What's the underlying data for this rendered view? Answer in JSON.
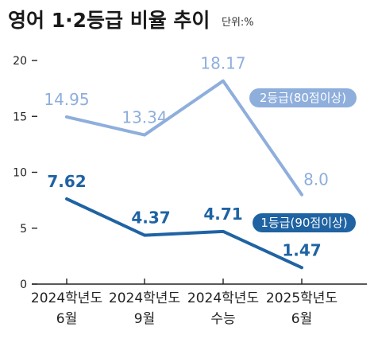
{
  "title": "영어 1·2등급 비율 추이",
  "unit_label": "단위:%",
  "colors": {
    "series_1": "#1f63a3",
    "series_2": "#8eaedc",
    "axis": "#222222",
    "text": "#222222"
  },
  "chart_data": {
    "type": "line",
    "title": "영어 1·2등급 비율 추이",
    "categories": [
      [
        "2024학년도",
        "6월"
      ],
      [
        "2024학년도",
        "9월"
      ],
      [
        "2024학년도",
        "수능"
      ],
      [
        "2025학년도",
        "6월"
      ]
    ],
    "ylim": [
      0,
      20
    ],
    "yticks": [
      0,
      5,
      10,
      15,
      20
    ],
    "grid": false,
    "series": [
      {
        "name": "2등급(80점이상)",
        "values": [
          14.95,
          13.34,
          18.17,
          8.0
        ],
        "labels": [
          "14.95",
          "13.34",
          "18.17",
          "8.0"
        ],
        "color": "#8eaedc"
      },
      {
        "name": "1등급(90점이상)",
        "values": [
          7.62,
          4.37,
          4.71,
          1.47
        ],
        "labels": [
          "7.62",
          "4.37",
          "4.71",
          "1.47"
        ],
        "color": "#1f63a3"
      }
    ]
  }
}
